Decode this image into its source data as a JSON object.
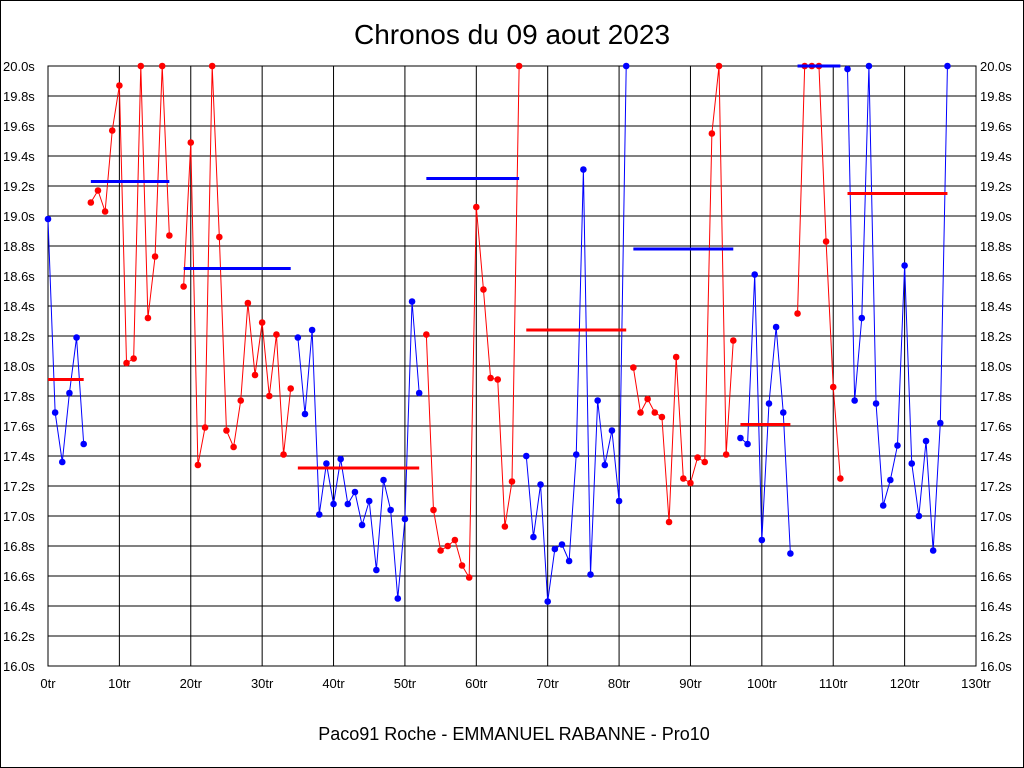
{
  "chart_data": {
    "type": "line",
    "title": "Chronos du 09 aout 2023",
    "xlabel": "Paco91 Roche - EMMANUEL RABANNE - Pro10",
    "ylabel": "",
    "xlim": [
      0,
      130
    ],
    "ylim": [
      16.0,
      20.0
    ],
    "x_ticks": [
      0,
      10,
      20,
      30,
      40,
      50,
      60,
      70,
      80,
      90,
      100,
      110,
      120,
      130
    ],
    "x_tick_labels": [
      "0tr",
      "10tr",
      "20tr",
      "30tr",
      "40tr",
      "50tr",
      "60tr",
      "70tr",
      "80tr",
      "90tr",
      "100tr",
      "110tr",
      "120tr",
      "130tr"
    ],
    "y_ticks": [
      16.0,
      16.2,
      16.4,
      16.6,
      16.8,
      17.0,
      17.2,
      17.4,
      17.6,
      17.8,
      18.0,
      18.2,
      18.4,
      18.6,
      18.8,
      19.0,
      19.2,
      19.4,
      19.6,
      19.8,
      20.0
    ],
    "y_tick_labels": [
      "16.0s",
      "16.2s",
      "16.4s",
      "16.6s",
      "16.8s",
      "17.0s",
      "17.2s",
      "17.4s",
      "17.6s",
      "17.8s",
      "18.0s",
      "18.2s",
      "18.4s",
      "18.6s",
      "18.8s",
      "19.0s",
      "19.2s",
      "19.4s",
      "19.6s",
      "19.8s",
      "20.0s"
    ],
    "grid": true,
    "colors": {
      "blue": "#0000ff",
      "red": "#ff0000"
    },
    "segments": [
      {
        "color": "blue",
        "x": [
          0,
          1,
          2,
          3,
          4,
          5
        ],
        "y": [
          18.98,
          17.69,
          17.36,
          17.82,
          18.19,
          17.48
        ],
        "avg": 17.91,
        "avg_color": "red"
      },
      {
        "color": "red",
        "x": [
          6,
          7,
          8,
          9,
          10,
          11,
          12,
          13,
          14,
          15,
          16,
          17
        ],
        "y": [
          19.09,
          19.17,
          19.03,
          19.57,
          19.87,
          18.02,
          18.05,
          20.0,
          18.32,
          18.73,
          20.0,
          18.87
        ],
        "avg": 19.23,
        "avg_color": "blue"
      },
      {
        "color": "red",
        "x": [
          19,
          20,
          21,
          22,
          23,
          24,
          25,
          26,
          27,
          28,
          29,
          30,
          31,
          32,
          33,
          34
        ],
        "y": [
          18.53,
          19.49,
          17.34,
          17.59,
          20.0,
          18.86,
          17.57,
          17.46,
          17.77,
          18.42,
          17.94,
          18.29,
          17.8,
          18.21,
          17.41,
          17.85
        ],
        "avg": 18.65,
        "avg_color": "blue"
      },
      {
        "color": "blue",
        "x": [
          35,
          36,
          37,
          38,
          39,
          40,
          41,
          42,
          43,
          44,
          45,
          46,
          47,
          48,
          49,
          50,
          51,
          52
        ],
        "y": [
          18.19,
          17.68,
          18.24,
          17.01,
          17.35,
          17.08,
          17.38,
          17.08,
          17.16,
          16.94,
          17.1,
          16.64,
          17.24,
          17.04,
          16.45,
          16.98,
          18.43,
          17.82
        ],
        "avg": 17.32,
        "avg_color": "red"
      },
      {
        "color": "red",
        "x": [
          53,
          54,
          55,
          56,
          57,
          58,
          59,
          60,
          61,
          62,
          63,
          64,
          65,
          66
        ],
        "y": [
          18.21,
          17.04,
          16.77,
          16.8,
          16.84,
          16.67,
          16.59,
          19.06,
          18.51,
          17.92,
          17.91,
          16.93,
          17.23,
          20.0
        ],
        "avg": 19.25,
        "avg_color": "blue"
      },
      {
        "color": "blue",
        "x": [
          67,
          68,
          69,
          70,
          71,
          72,
          73,
          74,
          75,
          76,
          77,
          78,
          79,
          80,
          81
        ],
        "y": [
          17.4,
          16.86,
          17.21,
          16.43,
          16.78,
          16.81,
          16.7,
          17.41,
          19.31,
          16.61,
          17.77,
          17.34,
          17.57,
          17.1,
          20.0
        ],
        "avg": 18.24,
        "avg_color": "red"
      },
      {
        "color": "red",
        "x": [
          82,
          83,
          84,
          85,
          86,
          87,
          88,
          89,
          90,
          91,
          92,
          93,
          94,
          95,
          96
        ],
        "y": [
          17.99,
          17.69,
          17.78,
          17.69,
          17.66,
          16.96,
          18.06,
          17.25,
          17.22,
          17.39,
          17.36,
          19.55,
          20.0,
          17.41,
          18.17
        ],
        "avg": 18.78,
        "avg_color": "blue"
      },
      {
        "color": "blue",
        "x": [
          97,
          98,
          99,
          100,
          101,
          102,
          103,
          104
        ],
        "y": [
          17.52,
          17.48,
          18.61,
          16.84,
          17.75,
          18.26,
          17.69,
          16.75
        ],
        "avg": 17.61,
        "avg_color": "red"
      },
      {
        "color": "red",
        "x": [
          105,
          106,
          107,
          108,
          109,
          110,
          111
        ],
        "y": [
          18.35,
          20.0,
          20.0,
          20.0,
          18.83,
          17.86,
          17.25
        ],
        "avg": 20.0,
        "avg_color": "blue"
      },
      {
        "color": "blue",
        "x": [
          112,
          113,
          114,
          115,
          116,
          117,
          118,
          119,
          120,
          121,
          122,
          123,
          124,
          125,
          126
        ],
        "y": [
          19.98,
          17.77,
          18.32,
          20.0,
          17.75,
          17.07,
          17.24,
          17.47,
          18.67,
          17.35,
          17.0,
          17.5,
          16.77,
          17.62,
          20.0
        ],
        "avg": 19.15,
        "avg_color": "red"
      }
    ]
  }
}
